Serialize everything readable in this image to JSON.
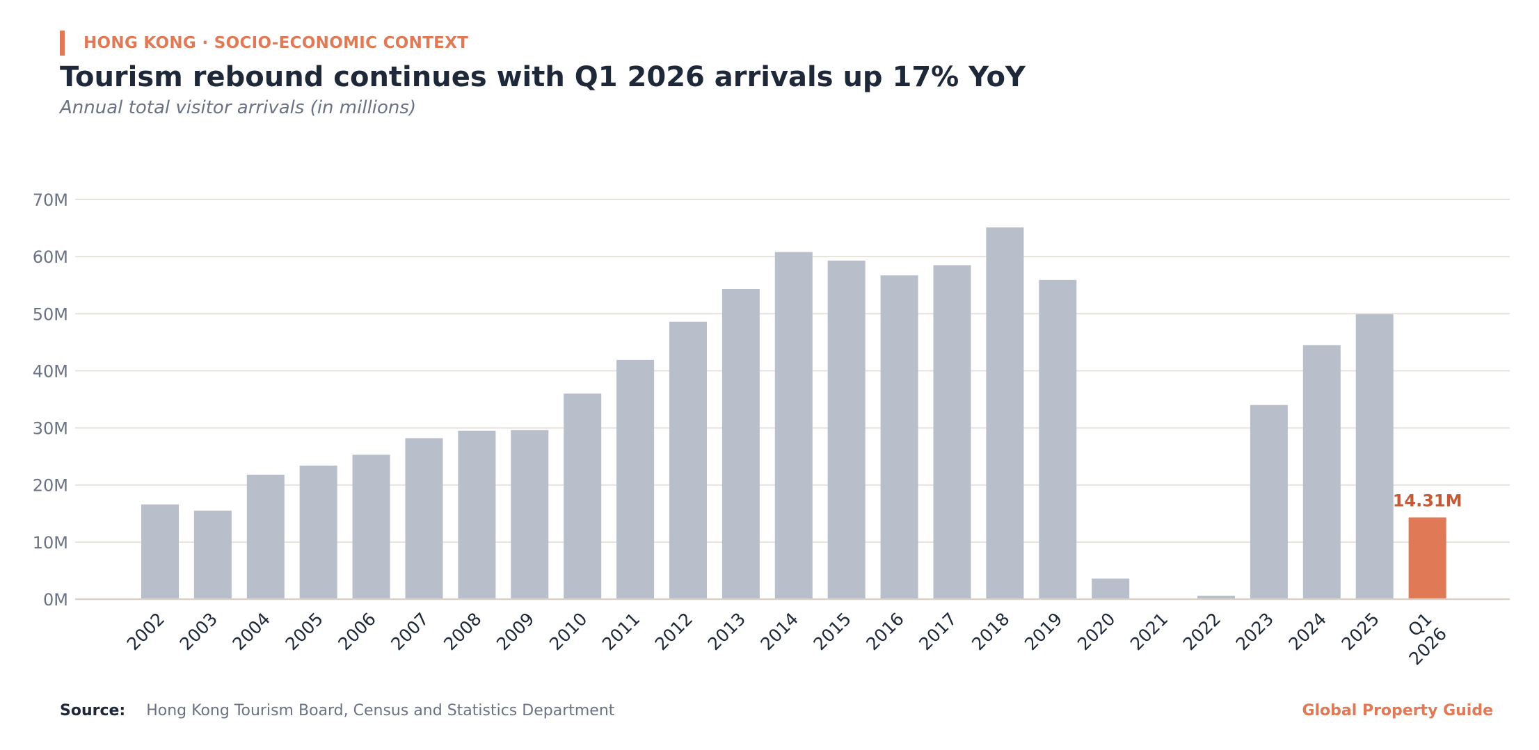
{
  "header": {
    "kicker": "HONG KONG · SOCIO-ECONOMIC CONTEXT",
    "title": "Tourism rebound continues with Q1 2026 arrivals up 17% YoY",
    "subtitle": "Annual total visitor arrivals (in millions)"
  },
  "footer": {
    "source_label": "Source:",
    "source_text": "Hong Kong Tourism Board, Census and Statistics Department",
    "brand": "Global Property Guide"
  },
  "colors": {
    "bar": "#b8bfca",
    "highlight": "#e07a56",
    "highlight_label": "#c65a37",
    "grid": "#e6e2dc",
    "axis": "#d8d2c8",
    "tick_text": "#6b7284",
    "category_text": "#1e2838"
  },
  "chart_data": {
    "type": "bar",
    "categories": [
      "2002",
      "2003",
      "2004",
      "2005",
      "2006",
      "2007",
      "2008",
      "2009",
      "2010",
      "2011",
      "2012",
      "2013",
      "2014",
      "2015",
      "2016",
      "2017",
      "2018",
      "2019",
      "2020",
      "2021",
      "2022",
      "2023",
      "2024",
      "2025",
      "Q1 2026"
    ],
    "values": [
      16.6,
      15.5,
      21.8,
      23.4,
      25.3,
      28.2,
      29.5,
      29.6,
      36.0,
      41.9,
      48.6,
      54.3,
      60.8,
      59.3,
      56.7,
      58.5,
      65.1,
      55.9,
      3.6,
      0.1,
      0.6,
      34.0,
      44.5,
      49.9,
      14.31
    ],
    "highlight_index": 24,
    "highlight_label": "14.31M",
    "yticks": [
      "0M",
      "10M",
      "20M",
      "30M",
      "40M",
      "50M",
      "60M",
      "70M"
    ],
    "ylim": [
      0,
      70
    ],
    "ytick_step": 10,
    "grid": true,
    "legend": "none"
  }
}
